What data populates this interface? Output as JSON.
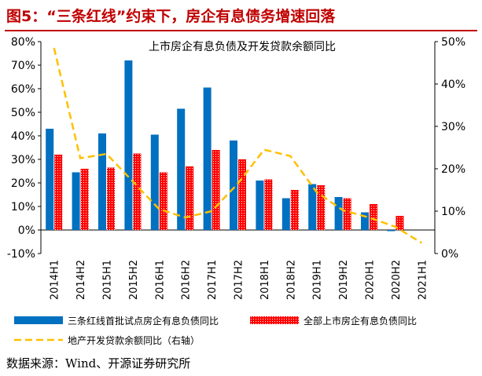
{
  "figure": {
    "title": "图5：“三条红线”约束下，房企有息债务增速回落",
    "source": "数据来源：Wind、开源证券研究所"
  },
  "colors": {
    "blue": "#0070c0",
    "red": "#ff0000",
    "orange": "#ffc000",
    "title_red": "#c00000"
  },
  "chart_data": {
    "type": "bar",
    "title": "上市房企有息负债及开发贷款余额同比",
    "categories": [
      "2014H1",
      "2014H2",
      "2015H1",
      "2015H2",
      "2016H1",
      "2016H2",
      "2017H1",
      "2017H2",
      "2018H1",
      "2018H2",
      "2019H1",
      "2019H2",
      "2020H1",
      "2020H2",
      "2021H1"
    ],
    "y_left": {
      "min": -10,
      "max": 80,
      "step": 10,
      "ticks": [
        "80%",
        "70%",
        "60%",
        "50%",
        "40%",
        "30%",
        "20%",
        "10%",
        "0%",
        "-10%"
      ]
    },
    "y_right": {
      "min": 0,
      "max": 50,
      "step": 10,
      "ticks": [
        "50%",
        "40%",
        "30%",
        "20%",
        "10%",
        "0%"
      ]
    },
    "series": [
      {
        "name": "三条红线首批试点房企有息负债同比",
        "type": "bar",
        "axis": "left",
        "color": "#0070c0",
        "values": [
          43,
          24.5,
          41,
          72,
          40.5,
          51.5,
          60.5,
          38,
          21,
          13.5,
          19.5,
          14,
          7.5,
          -0.5,
          null
        ]
      },
      {
        "name": "全部上市房企有息负债同比",
        "type": "bar",
        "axis": "left",
        "color": "#ff0000",
        "pattern": "dotted",
        "values": [
          32,
          26,
          26.5,
          32.5,
          24.5,
          27,
          34,
          30,
          21.5,
          17,
          19,
          13.5,
          11,
          6,
          null
        ]
      },
      {
        "name": "地产开发贷款余额同比（右轴）",
        "type": "line",
        "axis": "right",
        "color": "#ffc000",
        "style": "dashed",
        "values": [
          48.5,
          22.5,
          23.5,
          17,
          10.5,
          8.5,
          10,
          16.5,
          24.5,
          23,
          14.5,
          10.2,
          8.5,
          6.3,
          2.5
        ]
      }
    ]
  }
}
